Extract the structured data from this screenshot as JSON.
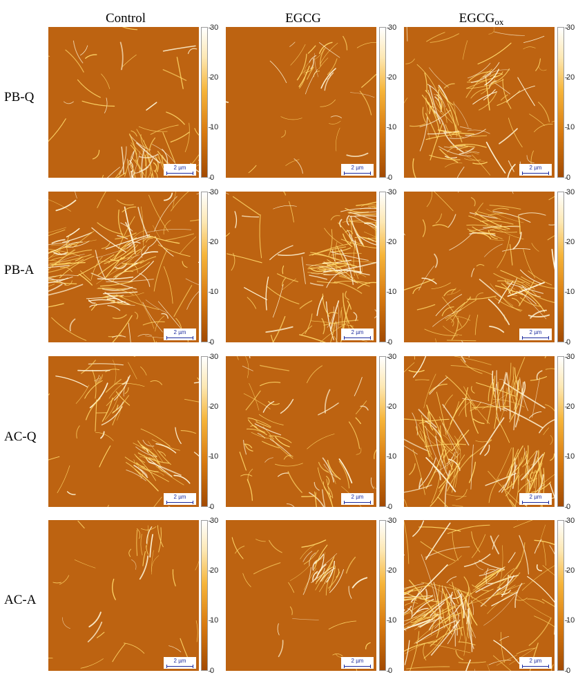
{
  "columns": [
    {
      "label": "Control",
      "sub": ""
    },
    {
      "label": "EGCG",
      "sub": ""
    },
    {
      "label": "EGCG",
      "sub": "ox"
    }
  ],
  "rows": [
    "PB-Q",
    "PB-A",
    "AC-Q",
    "AC-A"
  ],
  "scale_bar_label": "2 µm",
  "colorbar": {
    "max": "30",
    "t20": "20",
    "t10": "10",
    "min": "0"
  },
  "density": [
    [
      0.35,
      0.12,
      0.55
    ],
    [
      0.85,
      0.7,
      0.55
    ],
    [
      0.4,
      0.3,
      0.95
    ],
    [
      0.08,
      0.18,
      1.0
    ]
  ],
  "colors": {
    "background": "#bd6311",
    "fibril": "#ffd86a",
    "fibril_bright": "#fff6d8",
    "scale_bar": "#1b2a9e"
  }
}
